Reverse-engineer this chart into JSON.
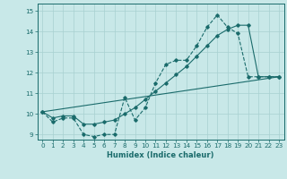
{
  "title": "",
  "xlabel": "Humidex (Indice chaleur)",
  "bg_color": "#c8e8e8",
  "line_color": "#1a6b6b",
  "grid_color": "#a8d0d0",
  "xlim": [
    -0.5,
    23.5
  ],
  "ylim": [
    8.75,
    15.35
  ],
  "xticks": [
    0,
    1,
    2,
    3,
    4,
    5,
    6,
    7,
    8,
    9,
    10,
    11,
    12,
    13,
    14,
    15,
    16,
    17,
    18,
    19,
    20,
    21,
    22,
    23
  ],
  "yticks": [
    9,
    10,
    11,
    12,
    13,
    14,
    15
  ],
  "line1_x": [
    0,
    1,
    2,
    3,
    4,
    5,
    6,
    7,
    8,
    9,
    10,
    11,
    12,
    13,
    14,
    15,
    16,
    17,
    18,
    19,
    20,
    21,
    22,
    23
  ],
  "line1_y": [
    10.1,
    9.6,
    9.8,
    9.8,
    9.0,
    8.9,
    9.0,
    9.0,
    10.8,
    9.7,
    10.3,
    11.5,
    12.4,
    12.6,
    12.6,
    13.3,
    14.2,
    14.8,
    14.2,
    13.9,
    11.8,
    11.8,
    11.8,
    11.8
  ],
  "line2_x": [
    0,
    1,
    2,
    3,
    4,
    5,
    6,
    7,
    8,
    9,
    10,
    11,
    12,
    13,
    14,
    15,
    16,
    17,
    18,
    19,
    20,
    21,
    22,
    23
  ],
  "line2_y": [
    10.1,
    9.8,
    9.9,
    9.9,
    9.5,
    9.5,
    9.6,
    9.7,
    10.0,
    10.3,
    10.7,
    11.1,
    11.5,
    11.9,
    12.3,
    12.8,
    13.3,
    13.8,
    14.1,
    14.3,
    14.3,
    11.8,
    11.8,
    11.8
  ],
  "line3_x": [
    0,
    23
  ],
  "line3_y": [
    10.1,
    11.8
  ]
}
